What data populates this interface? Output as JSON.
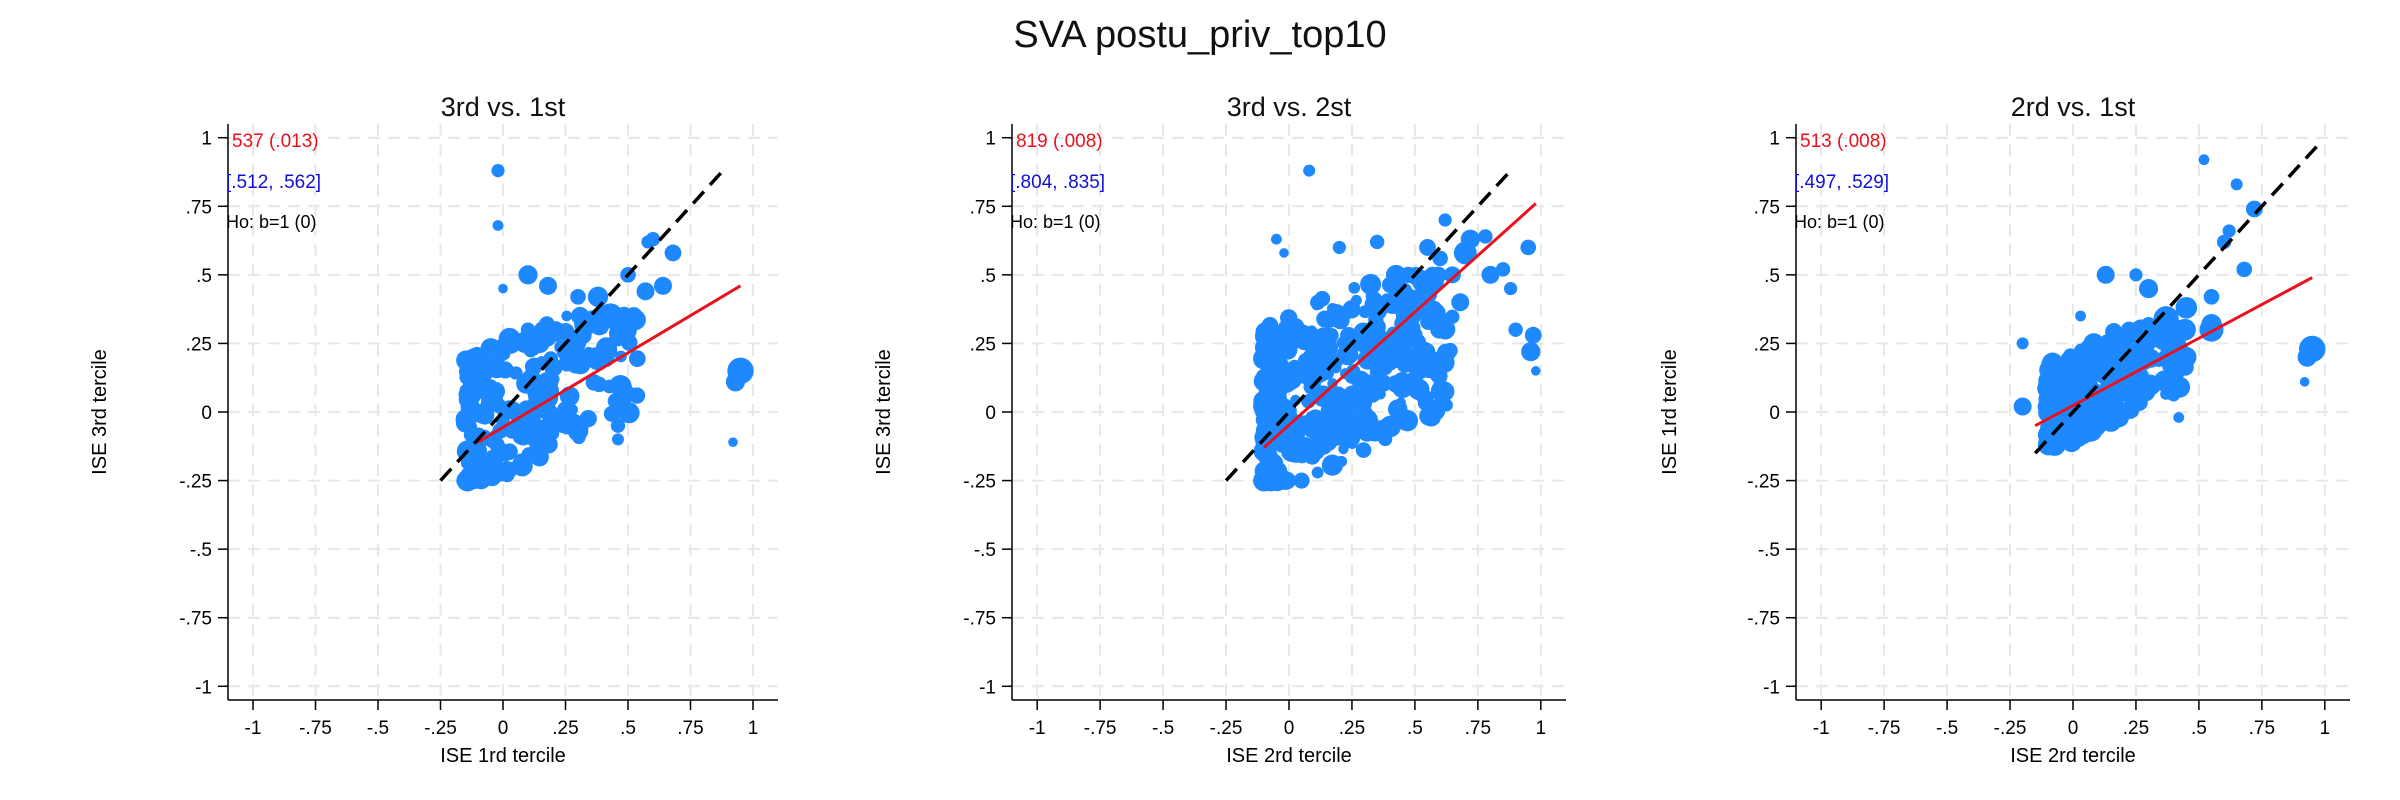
{
  "title": "SVA postu_priv_top10",
  "colors": {
    "points": "#1e88ff",
    "fit_line": "#e8121e",
    "diagonal": "#000000",
    "coef_text": "#e8121e",
    "ci_text": "#1010d8",
    "ho_text": "#000000",
    "grid": "#e8e8e8"
  },
  "chart_data": [
    {
      "type": "scatter",
      "title": "3rd vs. 1st",
      "xlabel": "ISE 1rd tercile",
      "ylabel": "ISE 3rd tercile",
      "xlim": [
        -1.1,
        1.1
      ],
      "ylim": [
        -1.05,
        1.05
      ],
      "xticks": [
        -1,
        -0.75,
        -0.5,
        -0.25,
        0,
        0.25,
        0.5,
        0.75,
        1
      ],
      "xtick_labels": [
        "-1",
        "-.75",
        "-.5",
        "-.25",
        "0",
        ".25",
        ".5",
        ".75",
        "1"
      ],
      "yticks": [
        -1,
        -0.75,
        -0.5,
        -0.25,
        0,
        0.25,
        0.5,
        0.75,
        1
      ],
      "ytick_labels": [
        "-1",
        "-.75",
        "-.5",
        "-.25",
        "0",
        ".25",
        ".5",
        ".75",
        "1"
      ],
      "grid": true,
      "annotations": {
        "coef": "537 (.013)",
        "ci": "[.512, .562]",
        "ho": "Ho: b=1 (0)"
      },
      "fit_line": {
        "x": [
          -0.1,
          0.95
        ],
        "y": [
          -0.11,
          0.46
        ]
      },
      "diagonal": {
        "x": [
          -0.25,
          0.88
        ],
        "y": [
          -0.25,
          0.88
        ]
      },
      "cluster": {
        "x_range": [
          -0.15,
          0.55
        ],
        "y_range": [
          -0.25,
          0.3
        ],
        "count": 240
      },
      "points": [
        {
          "x": -0.15,
          "y": -0.04,
          "s": 1.6
        },
        {
          "x": -0.02,
          "y": 0.88,
          "s": 1.1
        },
        {
          "x": -0.02,
          "y": 0.68,
          "s": 0.9
        },
        {
          "x": 0.0,
          "y": 0.45,
          "s": 0.8
        },
        {
          "x": 0.1,
          "y": 0.5,
          "s": 1.6
        },
        {
          "x": 0.18,
          "y": 0.46,
          "s": 1.5
        },
        {
          "x": 0.3,
          "y": 0.42,
          "s": 1.3
        },
        {
          "x": 0.33,
          "y": 0.32,
          "s": 1.9
        },
        {
          "x": 0.38,
          "y": 0.42,
          "s": 1.7
        },
        {
          "x": 0.43,
          "y": 0.35,
          "s": 2.1
        },
        {
          "x": 0.49,
          "y": 0.3,
          "s": 1.9
        },
        {
          "x": 0.5,
          "y": 0.5,
          "s": 1.3
        },
        {
          "x": 0.57,
          "y": 0.44,
          "s": 1.5
        },
        {
          "x": 0.58,
          "y": 0.62,
          "s": 1.1
        },
        {
          "x": 0.6,
          "y": 0.63,
          "s": 1.2
        },
        {
          "x": 0.64,
          "y": 0.46,
          "s": 1.5
        },
        {
          "x": 0.68,
          "y": 0.58,
          "s": 1.4
        },
        {
          "x": 0.45,
          "y": 0.04,
          "s": 1.3
        },
        {
          "x": 0.46,
          "y": -0.05,
          "s": 1.2
        },
        {
          "x": 0.46,
          "y": -0.1,
          "s": 1.0
        },
        {
          "x": -0.1,
          "y": 0.18,
          "s": 1.2
        },
        {
          "x": 0.95,
          "y": 0.15,
          "s": 2.2
        },
        {
          "x": 0.93,
          "y": 0.11,
          "s": 1.6
        },
        {
          "x": 0.92,
          "y": -0.11,
          "s": 0.8
        },
        {
          "x": 0.27,
          "y": 0.22,
          "s": 1.4
        },
        {
          "x": 0.1,
          "y": 0.3,
          "s": 1.2
        }
      ]
    },
    {
      "type": "scatter",
      "title": "3rd vs. 2st",
      "xlabel": "ISE 2rd tercile",
      "ylabel": "ISE 3rd tercile",
      "xlim": [
        -1.1,
        1.1
      ],
      "ylim": [
        -1.05,
        1.05
      ],
      "xticks": [
        -1,
        -0.75,
        -0.5,
        -0.25,
        0,
        0.25,
        0.5,
        0.75,
        1
      ],
      "xtick_labels": [
        "-1",
        "-.75",
        "-.5",
        "-.25",
        "0",
        ".25",
        ".5",
        ".75",
        "1"
      ],
      "yticks": [
        -1,
        -0.75,
        -0.5,
        -0.25,
        0,
        0.25,
        0.5,
        0.75,
        1
      ],
      "ytick_labels": [
        "-1",
        "-.75",
        "-.5",
        "-.25",
        "0",
        ".25",
        ".5",
        ".75",
        "1"
      ],
      "grid": true,
      "annotations": {
        "coef": "819 (.008)",
        "ci": "[.804, .835]",
        "ho": "Ho: b=1 (0)"
      },
      "fit_line": {
        "x": [
          -0.1,
          0.98
        ],
        "y": [
          -0.13,
          0.76
        ]
      },
      "diagonal": {
        "x": [
          -0.25,
          0.88
        ],
        "y": [
          -0.25,
          0.88
        ]
      },
      "cluster": {
        "x_range": [
          -0.1,
          0.65
        ],
        "y_range": [
          -0.25,
          0.45
        ],
        "count": 420
      },
      "points": [
        {
          "x": -0.05,
          "y": 0.63,
          "s": 0.9
        },
        {
          "x": 0.08,
          "y": 0.88,
          "s": 1.0
        },
        {
          "x": -0.02,
          "y": 0.58,
          "s": 0.8
        },
        {
          "x": 0.2,
          "y": 0.6,
          "s": 1.1
        },
        {
          "x": 0.35,
          "y": 0.62,
          "s": 1.2
        },
        {
          "x": 0.55,
          "y": 0.6,
          "s": 1.4
        },
        {
          "x": 0.6,
          "y": 0.56,
          "s": 1.3
        },
        {
          "x": 0.62,
          "y": 0.7,
          "s": 1.1
        },
        {
          "x": 0.7,
          "y": 0.58,
          "s": 1.9
        },
        {
          "x": 0.72,
          "y": 0.63,
          "s": 1.6
        },
        {
          "x": 0.78,
          "y": 0.64,
          "s": 1.2
        },
        {
          "x": 0.8,
          "y": 0.5,
          "s": 1.5
        },
        {
          "x": 0.85,
          "y": 0.52,
          "s": 1.2
        },
        {
          "x": 0.88,
          "y": 0.45,
          "s": 1.1
        },
        {
          "x": 0.9,
          "y": 0.3,
          "s": 1.2
        },
        {
          "x": 0.95,
          "y": 0.6,
          "s": 1.3
        },
        {
          "x": 0.97,
          "y": 0.28,
          "s": 1.4
        },
        {
          "x": 0.96,
          "y": 0.22,
          "s": 1.6
        },
        {
          "x": 0.98,
          "y": 0.15,
          "s": 0.8
        },
        {
          "x": 0.5,
          "y": 0.12,
          "s": 1.3
        },
        {
          "x": 0.55,
          "y": 0.03,
          "s": 0.9
        },
        {
          "x": 0.48,
          "y": 0.2,
          "s": 1.4
        },
        {
          "x": 0.4,
          "y": 0.25,
          "s": 1.2
        },
        {
          "x": 0.6,
          "y": 0.33,
          "s": 1.4
        },
        {
          "x": 0.68,
          "y": 0.4,
          "s": 1.5
        }
      ]
    },
    {
      "type": "scatter",
      "title": "2rd vs. 1st",
      "xlabel": "ISE 2rd tercile",
      "ylabel": "ISE 1rd tercile",
      "xlim": [
        -1.1,
        1.1
      ],
      "ylim": [
        -1.05,
        1.05
      ],
      "xticks": [
        -1,
        -0.75,
        -0.5,
        -0.25,
        0,
        0.25,
        0.5,
        0.75,
        1
      ],
      "xtick_labels": [
        "-1",
        "-.75",
        "-.5",
        "-.25",
        "0",
        ".25",
        ".5",
        ".75",
        "1"
      ],
      "yticks": [
        -1,
        -0.75,
        -0.5,
        -0.25,
        0,
        0.25,
        0.5,
        0.75,
        1
      ],
      "ytick_labels": [
        "-1",
        "-.75",
        "-.5",
        "-.25",
        "0",
        ".25",
        ".5",
        ".75",
        "1"
      ],
      "grid": true,
      "annotations": {
        "coef": "513 (.008)",
        "ci": "[.497, .529]",
        "ho": "Ho: b=1 (0)"
      },
      "fit_line": {
        "x": [
          -0.15,
          0.95
        ],
        "y": [
          -0.05,
          0.49
        ]
      },
      "diagonal": {
        "x": [
          -0.15,
          0.98
        ],
        "y": [
          -0.15,
          0.98
        ]
      },
      "cluster": {
        "x_range": [
          -0.1,
          0.45
        ],
        "y_range": [
          -0.12,
          0.25
        ],
        "count": 300
      },
      "points": [
        {
          "x": -0.2,
          "y": 0.02,
          "s": 1.5
        },
        {
          "x": -0.2,
          "y": 0.25,
          "s": 1.0
        },
        {
          "x": 0.03,
          "y": 0.35,
          "s": 0.9
        },
        {
          "x": 0.13,
          "y": 0.5,
          "s": 1.5
        },
        {
          "x": 0.25,
          "y": 0.5,
          "s": 1.1
        },
        {
          "x": 0.3,
          "y": 0.45,
          "s": 1.6
        },
        {
          "x": 0.37,
          "y": 0.34,
          "s": 2.1
        },
        {
          "x": 0.42,
          "y": 0.28,
          "s": 1.4
        },
        {
          "x": 0.45,
          "y": 0.38,
          "s": 1.8
        },
        {
          "x": 0.55,
          "y": 0.42,
          "s": 1.3
        },
        {
          "x": 0.55,
          "y": 0.32,
          "s": 1.7
        },
        {
          "x": 0.52,
          "y": 0.92,
          "s": 0.9
        },
        {
          "x": 0.6,
          "y": 0.62,
          "s": 1.2
        },
        {
          "x": 0.62,
          "y": 0.66,
          "s": 1.1
        },
        {
          "x": 0.65,
          "y": 0.83,
          "s": 1.0
        },
        {
          "x": 0.68,
          "y": 0.52,
          "s": 1.3
        },
        {
          "x": 0.72,
          "y": 0.74,
          "s": 1.4
        },
        {
          "x": 0.55,
          "y": 0.3,
          "s": 2.0
        },
        {
          "x": 0.45,
          "y": 0.2,
          "s": 1.7
        },
        {
          "x": 0.4,
          "y": 0.06,
          "s": 1.0
        },
        {
          "x": 0.42,
          "y": -0.02,
          "s": 0.9
        },
        {
          "x": 0.95,
          "y": 0.23,
          "s": 2.2
        },
        {
          "x": 0.93,
          "y": 0.2,
          "s": 1.6
        },
        {
          "x": 0.92,
          "y": 0.11,
          "s": 0.8
        },
        {
          "x": 0.3,
          "y": 0.32,
          "s": 1.2
        }
      ]
    }
  ]
}
